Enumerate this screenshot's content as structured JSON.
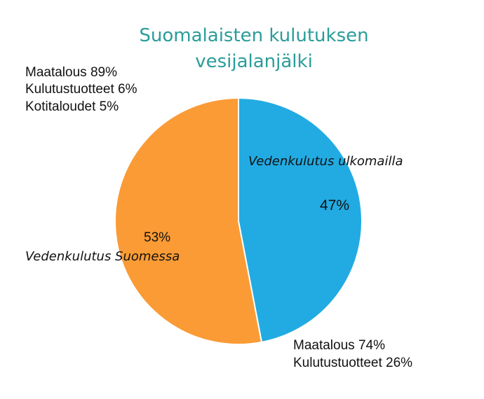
{
  "colors": {
    "title": "#2a9d9a",
    "abroad": "#22abe2",
    "finland": "#fa9b35",
    "slice_border": "#ffffff"
  },
  "chart_data": {
    "type": "pie",
    "title": [
      "Suomalaisten kulutuksen",
      "vesijalanjälki"
    ],
    "slices": [
      {
        "label": "Vedenkulutus ulkomailla",
        "value": 47,
        "value_label": "47%",
        "color": "#22abe2",
        "breakdown": [
          "Maatalous 74%",
          "Kulutustuotteet 26%"
        ]
      },
      {
        "label": "Vedenkulutus Suomessa",
        "value": 53,
        "value_label": "53%",
        "color": "#fa9b35",
        "breakdown": [
          "Maatalous 89%",
          "Kulutustuotteet 6%",
          "Kotitaloudet 5%"
        ]
      }
    ],
    "start_angle": "12 o'clock",
    "direction": "clockwise"
  }
}
